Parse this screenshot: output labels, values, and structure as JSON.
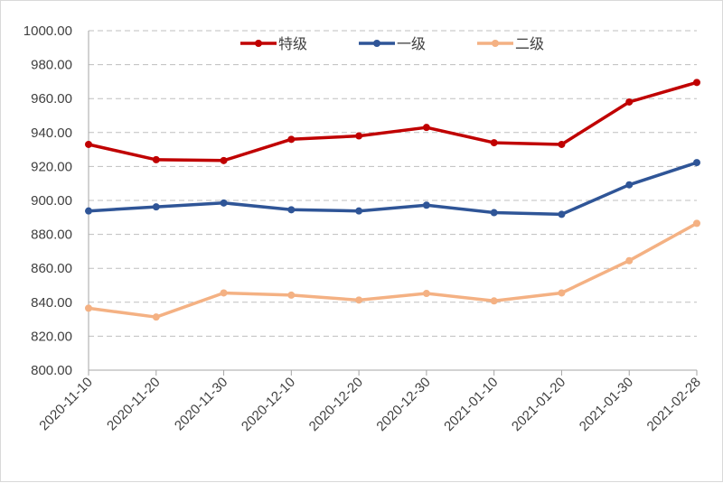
{
  "chart_data": {
    "type": "line",
    "title": "",
    "xlabel": "",
    "ylabel": "",
    "ylim": [
      800,
      1000
    ],
    "y_ticks": [
      "800.00",
      "820.00",
      "840.00",
      "860.00",
      "880.00",
      "900.00",
      "920.00",
      "940.00",
      "960.00",
      "980.00",
      "1000.00"
    ],
    "grid": "horizontal dashed",
    "legend_position": "top",
    "categories": [
      "2020-11-10",
      "2020-11-20",
      "2020-11-30",
      "2020-12-10",
      "2020-12-20",
      "2020-12-30",
      "2021-01-10",
      "2021-01-20",
      "2021-01-30",
      "2021-02-28"
    ],
    "series": [
      {
        "name": "特级",
        "color": "#c00000",
        "values": [
          933.0,
          924.0,
          923.5,
          936.0,
          938.0,
          943.0,
          934.0,
          933.0,
          958.0,
          969.5
        ]
      },
      {
        "name": "一级",
        "color": "#2f5597",
        "values": [
          893.8,
          896.2,
          898.5,
          894.5,
          893.8,
          897.2,
          892.8,
          891.8,
          909.2,
          922.3
        ]
      },
      {
        "name": "二级",
        "color": "#f4b183",
        "values": [
          836.5,
          831.3,
          845.5,
          844.2,
          841.3,
          845.2,
          840.8,
          845.5,
          864.5,
          886.5
        ]
      }
    ]
  }
}
